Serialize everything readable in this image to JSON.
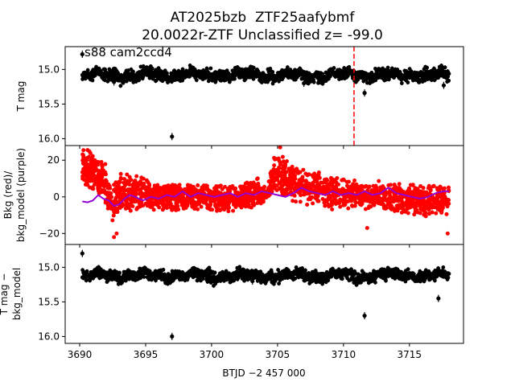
{
  "figure": {
    "title_line1": "AT2025bzb  ZTF25aafybmf",
    "title_line2": "20.0022r-ZTF Unclassified z= -99.0",
    "xlabel": "BTJD −2 457 000"
  },
  "colors": {
    "mag_points": "#000000",
    "bkg_points": "#ff0000",
    "bkg_model": "#9400d3",
    "event_line": "#ff0000"
  },
  "chart_data": [
    {
      "type": "scatter",
      "panel": "top",
      "ylabel": "T mag",
      "annotation": "s88 cam2ccd4",
      "xlim": [
        3688.9,
        3719.1
      ],
      "ylim": [
        16.1,
        14.67
      ],
      "y_inverted": true,
      "xticks": [
        3690,
        3695,
        3700,
        3705,
        3710,
        3715
      ],
      "yticks": [
        15.0,
        15.5,
        16.0
      ],
      "ytick_labels": [
        "15.0",
        "15.5",
        "16.0"
      ],
      "data_range": [
        3690.2,
        3718.0
      ],
      "baseline": 15.08,
      "scatter": 0.09,
      "event_time": 3710.8,
      "outliers": [
        [
          3690.2,
          14.78
        ],
        [
          3697.0,
          15.97
        ],
        [
          3711.6,
          15.34
        ],
        [
          3717.6,
          15.23
        ],
        [
          3692.6,
          15.18
        ],
        [
          3707.0,
          15.2
        ]
      ]
    },
    {
      "type": "scatter",
      "panel": "middle",
      "ylabel_line1": "Bkg (red)/",
      "ylabel_line2": "bkg_model (purple)",
      "xlim": [
        3688.9,
        3719.1
      ],
      "ylim": [
        -26,
        28
      ],
      "xticks": [
        3690,
        3695,
        3700,
        3705,
        3710,
        3715
      ],
      "yticks": [
        20,
        0,
        -20
      ],
      "ytick_labels": [
        "20",
        "0",
        "−20"
      ],
      "bkg_envelope": [
        {
          "x": 3690.2,
          "lo": 5,
          "hi": 27
        },
        {
          "x": 3691.0,
          "lo": 3,
          "hi": 26
        },
        {
          "x": 3691.8,
          "lo": -4,
          "hi": 20
        },
        {
          "x": 3692.5,
          "lo": -15,
          "hi": 5
        },
        {
          "x": 3693.0,
          "lo": -9,
          "hi": 14
        },
        {
          "x": 3694.0,
          "lo": -8,
          "hi": 12
        },
        {
          "x": 3696.0,
          "lo": -8,
          "hi": 8
        },
        {
          "x": 3698.0,
          "lo": -7,
          "hi": 6
        },
        {
          "x": 3700.0,
          "lo": -8,
          "hi": 7
        },
        {
          "x": 3702.0,
          "lo": -8,
          "hi": 6
        },
        {
          "x": 3703.5,
          "lo": -6,
          "hi": 11
        },
        {
          "x": 3704.2,
          "lo": -2,
          "hi": 4
        },
        {
          "x": 3704.8,
          "lo": 2,
          "hi": 27
        },
        {
          "x": 3705.6,
          "lo": 0,
          "hi": 20
        },
        {
          "x": 3707.5,
          "lo": -5,
          "hi": 14
        },
        {
          "x": 3710.0,
          "lo": -7,
          "hi": 10
        },
        {
          "x": 3713.0,
          "lo": -8,
          "hi": 8
        },
        {
          "x": 3716.0,
          "lo": -10,
          "hi": 7
        },
        {
          "x": 3718.0,
          "lo": -12,
          "hi": 6
        }
      ],
      "bkg_model": [
        [
          3690.2,
          -2.5
        ],
        [
          3690.6,
          -3
        ],
        [
          3691.0,
          -2
        ],
        [
          3691.4,
          1
        ],
        [
          3691.8,
          -1
        ],
        [
          3692.2,
          -2
        ],
        [
          3692.6,
          -5
        ],
        [
          3693.0,
          -4
        ],
        [
          3693.4,
          -1
        ],
        [
          3693.8,
          1
        ],
        [
          3694.2,
          0
        ],
        [
          3694.8,
          -2
        ],
        [
          3695.4,
          0
        ],
        [
          3696.0,
          -1
        ],
        [
          3696.6,
          1
        ],
        [
          3697.2,
          0
        ],
        [
          3697.8,
          3
        ],
        [
          3698.4,
          0
        ],
        [
          3699.0,
          2
        ],
        [
          3699.6,
          1
        ],
        [
          3700.2,
          0
        ],
        [
          3700.8,
          1
        ],
        [
          3701.4,
          2
        ],
        [
          3702.0,
          0
        ],
        [
          3702.6,
          2
        ],
        [
          3703.2,
          1
        ],
        [
          3703.8,
          3
        ],
        [
          3704.4,
          2
        ],
        [
          3705.0,
          1
        ],
        [
          3705.6,
          0
        ],
        [
          3706.2,
          2
        ],
        [
          3706.8,
          5
        ],
        [
          3707.4,
          3
        ],
        [
          3708.0,
          2
        ],
        [
          3708.6,
          1
        ],
        [
          3709.2,
          3
        ],
        [
          3709.8,
          1
        ],
        [
          3710.4,
          2
        ],
        [
          3711.0,
          1
        ],
        [
          3711.6,
          3
        ],
        [
          3712.2,
          1
        ],
        [
          3712.8,
          2
        ],
        [
          3713.4,
          5
        ],
        [
          3714.0,
          2
        ],
        [
          3714.6,
          1
        ],
        [
          3715.2,
          0
        ],
        [
          3715.8,
          -1
        ],
        [
          3716.4,
          0
        ],
        [
          3717.0,
          2
        ],
        [
          3717.6,
          3
        ],
        [
          3718.0,
          3
        ]
      ]
    },
    {
      "type": "scatter",
      "panel": "bottom",
      "ylabel_line1": "T mag −",
      "ylabel_line2": "bkg_model",
      "xlim": [
        3688.9,
        3719.1
      ],
      "ylim": [
        16.1,
        14.67
      ],
      "y_inverted": true,
      "xticks": [
        3690,
        3695,
        3700,
        3705,
        3710,
        3715
      ],
      "xtick_labels": [
        "3690",
        "3695",
        "3700",
        "3705",
        "3710",
        "3715"
      ],
      "yticks": [
        15.0,
        15.5,
        16.0
      ],
      "ytick_labels": [
        "15.0",
        "15.5",
        "16.0"
      ],
      "data_range": [
        3690.2,
        3718.0
      ],
      "baseline": 15.12,
      "scatter": 0.09,
      "outliers": [
        [
          3690.2,
          14.8
        ],
        [
          3697.0,
          16.0
        ],
        [
          3711.6,
          15.7
        ],
        [
          3717.2,
          15.45
        ],
        [
          3703.1,
          15.2
        ]
      ]
    }
  ]
}
